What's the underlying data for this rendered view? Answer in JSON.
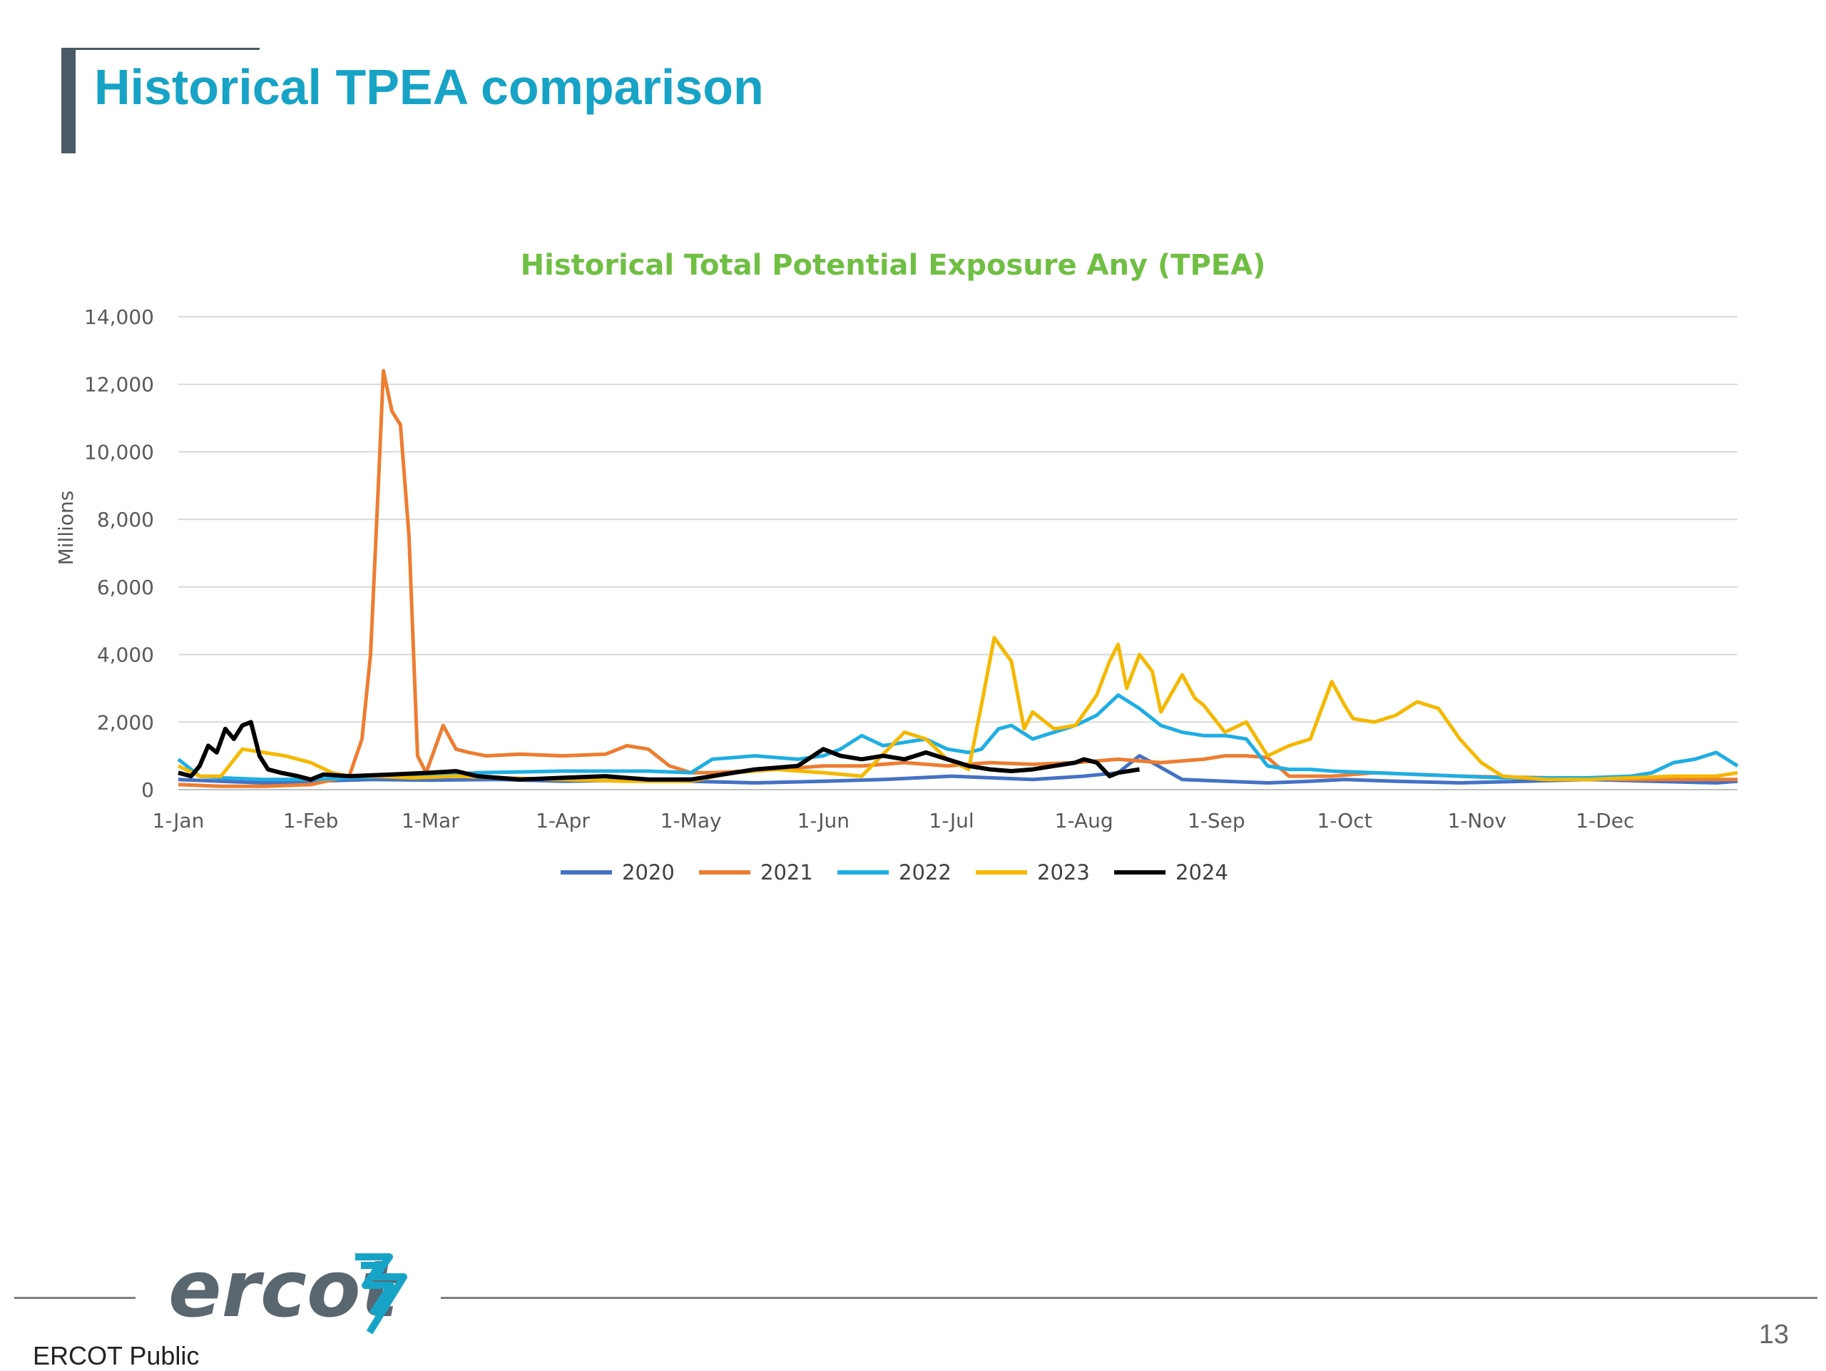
{
  "slide": {
    "title": "Historical TPEA comparison",
    "footer_label": "ERCOT Public",
    "page_number": "13",
    "logo_text": "ercot"
  },
  "chart_data": {
    "type": "line",
    "title": "Historical Total Potential Exposure Any (TPEA)",
    "xlabel": "",
    "ylabel": "Millions",
    "ylim": [
      0,
      14000
    ],
    "yticks": [
      0,
      2000,
      4000,
      6000,
      8000,
      10000,
      12000,
      14000
    ],
    "ytick_labels": [
      "0",
      "2,000",
      "4,000",
      "6,000",
      "8,000",
      "10,000",
      "12,000",
      "14,000"
    ],
    "x_domain_days": [
      0,
      365
    ],
    "xtick_labels": [
      "1-Jan",
      "1-Feb",
      "1-Mar",
      "1-Apr",
      "1-May",
      "1-Jun",
      "1-Jul",
      "1-Aug",
      "1-Sep",
      "1-Oct",
      "1-Nov",
      "1-Dec"
    ],
    "xtick_days": [
      0,
      31,
      59,
      90,
      120,
      151,
      181,
      212,
      243,
      273,
      304,
      334
    ],
    "grid": "horizontal",
    "legend_position": "bottom",
    "series": [
      {
        "name": "2020",
        "color": "#4472c4",
        "x": [
          0,
          10,
          20,
          31,
          45,
          59,
          75,
          90,
          105,
          120,
          135,
          151,
          165,
          181,
          190,
          200,
          212,
          220,
          225,
          228,
          235,
          245,
          255,
          265,
          273,
          285,
          300,
          315,
          330,
          345,
          360,
          365
        ],
        "values": [
          300,
          250,
          200,
          250,
          300,
          280,
          300,
          250,
          280,
          250,
          200,
          250,
          300,
          400,
          350,
          300,
          400,
          500,
          1000,
          800,
          300,
          250,
          200,
          250,
          300,
          250,
          200,
          250,
          300,
          250,
          200,
          250
        ]
      },
      {
        "name": "2021",
        "color": "#ed7d31",
        "x": [
          0,
          10,
          20,
          31,
          40,
          43,
          45,
          47,
          48,
          50,
          52,
          54,
          56,
          58,
          62,
          65,
          68,
          72,
          80,
          90,
          100,
          105,
          110,
          115,
          120,
          125,
          140,
          151,
          160,
          170,
          180,
          190,
          200,
          210,
          220,
          230,
          240,
          245,
          250,
          255,
          260,
          270,
          280,
          300,
          320,
          340,
          360,
          365
        ],
        "values": [
          150,
          100,
          100,
          150,
          400,
          1500,
          4000,
          9500,
          12400,
          11200,
          10800,
          7500,
          1000,
          500,
          1900,
          1200,
          1100,
          1000,
          1050,
          1000,
          1050,
          1300,
          1200,
          700,
          500,
          500,
          600,
          700,
          700,
          800,
          700,
          800,
          750,
          800,
          900,
          800,
          900,
          1000,
          1000,
          950,
          400,
          400,
          500,
          400,
          350,
          300,
          300,
          300
        ]
      },
      {
        "name": "2022",
        "color": "#1eaee4",
        "x": [
          0,
          5,
          10,
          20,
          31,
          40,
          50,
          59,
          70,
          90,
          110,
          120,
          125,
          135,
          145,
          151,
          155,
          160,
          165,
          170,
          175,
          180,
          185,
          188,
          192,
          195,
          200,
          205,
          210,
          215,
          220,
          225,
          230,
          235,
          240,
          245,
          250,
          255,
          260,
          265,
          270,
          280,
          290,
          300,
          310,
          320,
          330,
          340,
          345,
          350,
          355,
          360,
          365
        ],
        "values": [
          900,
          400,
          350,
          300,
          300,
          350,
          400,
          400,
          500,
          550,
          550,
          500,
          900,
          1000,
          900,
          1000,
          1200,
          1600,
          1300,
          1400,
          1500,
          1200,
          1100,
          1200,
          1800,
          1900,
          1500,
          1700,
          1900,
          2200,
          2800,
          2400,
          1900,
          1700,
          1600,
          1600,
          1500,
          700,
          600,
          600,
          550,
          500,
          450,
          400,
          350,
          350,
          350,
          400,
          500,
          800,
          900,
          1100,
          700
        ]
      },
      {
        "name": "2023",
        "color": "#f5b800",
        "x": [
          0,
          5,
          10,
          15,
          20,
          25,
          31,
          36,
          40,
          45,
          55,
          65,
          75,
          90,
          105,
          120,
          130,
          140,
          151,
          160,
          170,
          175,
          180,
          185,
          188,
          191,
          195,
          198,
          200,
          203,
          205,
          210,
          215,
          218,
          220,
          222,
          225,
          228,
          230,
          235,
          238,
          240,
          245,
          250,
          255,
          260,
          265,
          270,
          273,
          275,
          280,
          285,
          290,
          295,
          300,
          305,
          310,
          320,
          330,
          340,
          350,
          360,
          365
        ],
        "values": [
          700,
          400,
          400,
          1200,
          1100,
          1000,
          800,
          500,
          400,
          400,
          350,
          400,
          350,
          300,
          250,
          250,
          500,
          600,
          500,
          400,
          1700,
          1500,
          900,
          600,
          2500,
          4500,
          3800,
          1800,
          2300,
          2000,
          1800,
          1900,
          2800,
          3800,
          4300,
          3000,
          4000,
          3500,
          2300,
          3400,
          2700,
          2500,
          1700,
          2000,
          1000,
          1300,
          1500,
          3200,
          2500,
          2100,
          2000,
          2200,
          2600,
          2400,
          1500,
          800,
          400,
          300,
          300,
          350,
          400,
          400,
          500
        ]
      },
      {
        "name": "2024",
        "color": "#000000",
        "x": [
          0,
          3,
          5,
          7,
          9,
          11,
          13,
          15,
          17,
          19,
          21,
          24,
          28,
          31,
          34,
          40,
          50,
          59,
          65,
          70,
          80,
          90,
          100,
          110,
          120,
          130,
          135,
          140,
          145,
          151,
          155,
          160,
          165,
          170,
          175,
          180,
          185,
          190,
          195,
          200,
          205,
          210,
          212,
          215,
          218,
          220,
          225
        ],
        "values": [
          500,
          400,
          700,
          1300,
          1100,
          1800,
          1500,
          1900,
          2000,
          1000,
          600,
          500,
          400,
          300,
          450,
          400,
          450,
          500,
          550,
          400,
          300,
          350,
          400,
          300,
          300,
          500,
          600,
          650,
          700,
          1200,
          1000,
          900,
          1000,
          900,
          1100,
          900,
          700,
          600,
          550,
          600,
          700,
          800,
          900,
          800,
          400,
          500,
          600
        ]
      }
    ]
  }
}
